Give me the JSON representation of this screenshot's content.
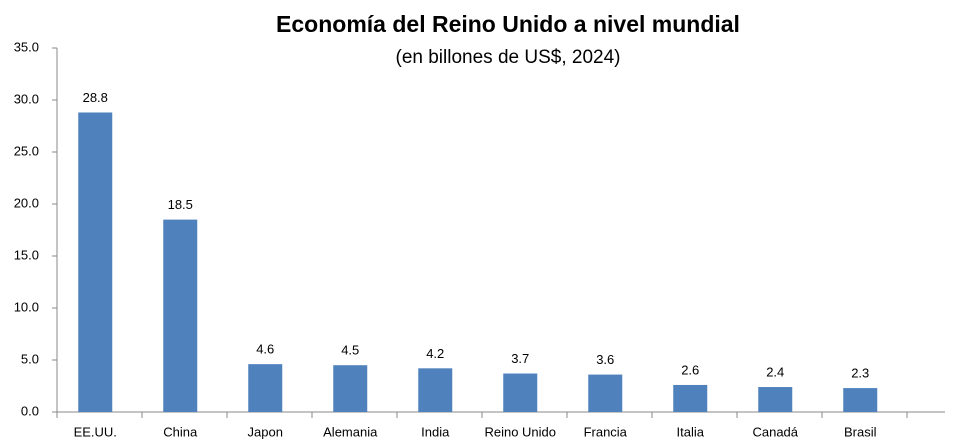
{
  "chart_data": {
    "type": "bar",
    "title": "Economía del Reino Unido a nivel mundial",
    "subtitle": "(en billones de US$, 2024)",
    "categories": [
      "EE.UU.",
      "China",
      "Japon",
      "Alemania",
      "India",
      "Reino Unido",
      "Francia",
      "Italia",
      "Canadá",
      "Brasil"
    ],
    "values": [
      28.8,
      18.5,
      4.6,
      4.5,
      4.2,
      3.7,
      3.6,
      2.6,
      2.4,
      2.3
    ],
    "color": "#4f81bd",
    "ylim": [
      0,
      35
    ],
    "yticks": [
      {
        "value": 0,
        "label": "0.0"
      },
      {
        "value": 5,
        "label": "5.0"
      },
      {
        "value": 10,
        "label": "10.0"
      },
      {
        "value": 15,
        "label": "15.0"
      },
      {
        "value": 20,
        "label": "20.0"
      },
      {
        "value": 25,
        "label": "25.0"
      },
      {
        "value": 30,
        "label": "30.0"
      },
      {
        "value": 35,
        "label": "35.0"
      }
    ],
    "grid": false
  }
}
